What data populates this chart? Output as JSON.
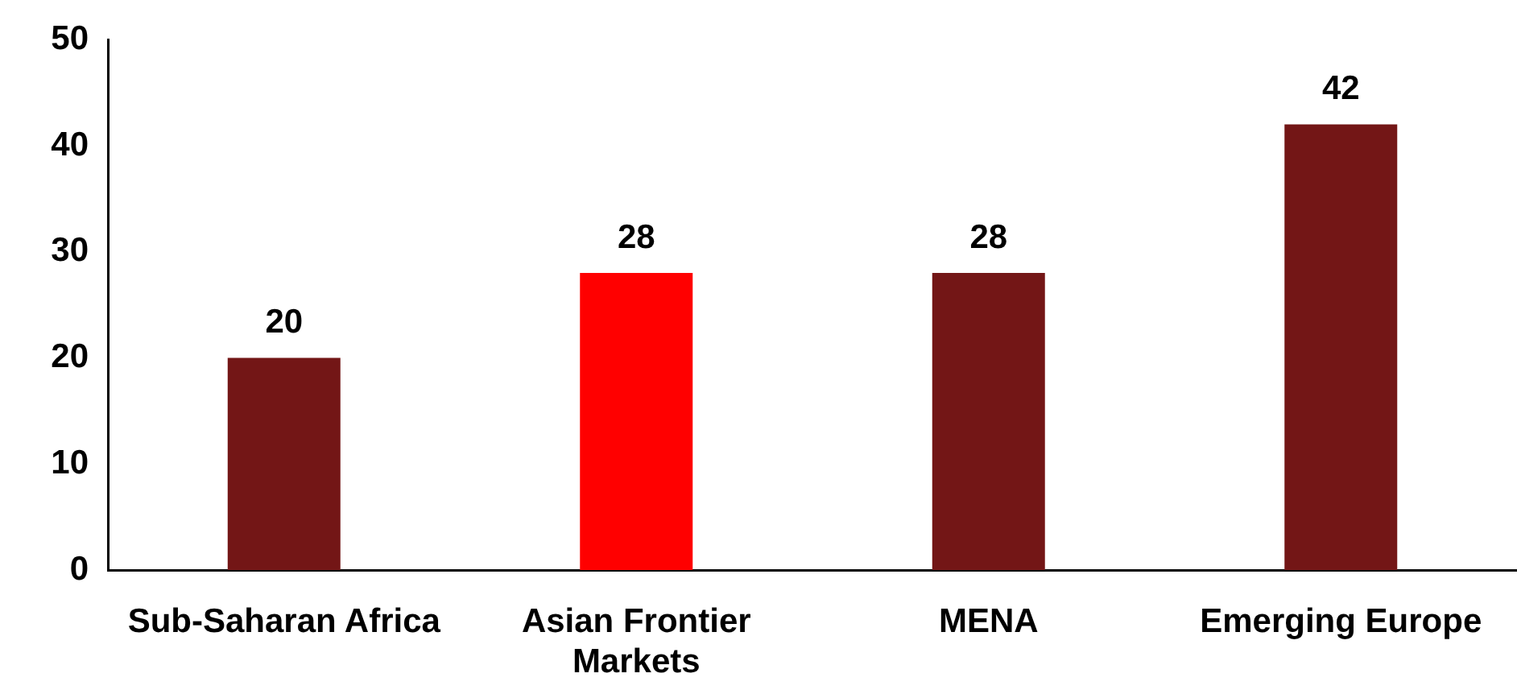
{
  "chart_data": {
    "type": "bar",
    "categories": [
      "Sub-Saharan Africa",
      "Asian Frontier Markets",
      "MENA",
      "Emerging Europe"
    ],
    "values": [
      20,
      28,
      28,
      42
    ],
    "colors": [
      "#731616",
      "#ff0000",
      "#731616",
      "#731616"
    ],
    "ylim": [
      0,
      50
    ],
    "yticks": [
      0,
      10,
      20,
      30,
      40,
      50
    ],
    "data_labels": true
  }
}
